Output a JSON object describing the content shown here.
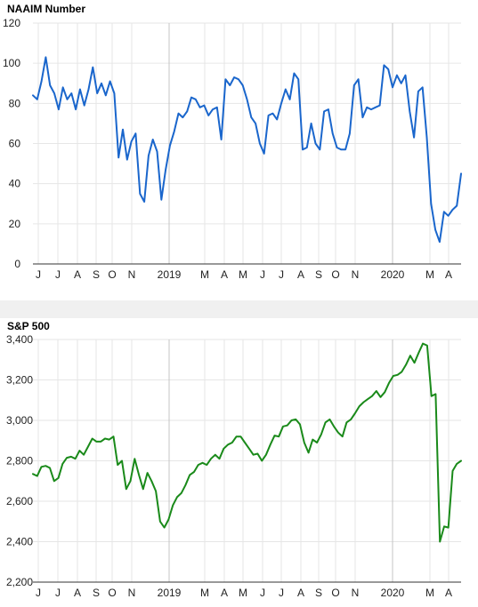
{
  "colors": {
    "naaim_line": "#1a66cc",
    "sp_line": "#1a8a1a",
    "grid": "#e6e6e6",
    "divider": "#c4c4c4",
    "band": "#f0f0f0"
  },
  "chart_data": [
    {
      "type": "line",
      "title": "NAAIM Number",
      "ylim": [
        0,
        120
      ],
      "yticks": [
        0,
        20,
        40,
        60,
        80,
        100,
        120
      ],
      "ytick_labels": [
        "0",
        "20",
        "40",
        "60",
        "80",
        "100",
        "120"
      ],
      "xtick_labels": [
        "J",
        "J",
        "A",
        "S",
        "O",
        "N",
        "2019",
        "M",
        "A",
        "M",
        "J",
        "J",
        "A",
        "S",
        "O",
        "N",
        "2020",
        "M",
        "A"
      ],
      "grid": true,
      "series": [
        {
          "values": [
            84,
            82,
            91,
            103,
            89,
            85,
            77,
            88,
            82,
            85,
            77,
            87,
            79,
            87,
            98,
            85,
            90,
            84,
            91,
            85,
            53,
            67,
            52,
            61,
            65,
            35,
            31,
            54,
            62,
            56,
            32,
            47,
            59,
            66,
            75,
            73,
            76,
            83,
            82,
            78,
            79,
            74,
            77,
            78,
            62,
            92,
            89,
            93,
            92,
            89,
            82,
            73,
            70,
            60,
            55,
            74,
            75,
            72,
            80,
            87,
            82,
            95,
            92,
            57,
            58,
            70,
            60,
            57,
            76,
            77,
            65,
            58,
            57,
            57,
            65,
            89,
            92,
            73,
            78,
            77,
            78,
            79,
            99,
            97,
            88,
            94,
            90,
            94,
            76,
            63,
            86,
            88,
            63,
            30,
            17,
            11,
            26,
            24,
            27,
            29,
            45
          ]
        }
      ]
    },
    {
      "type": "line",
      "title": "S&P 500",
      "ylim": [
        2200,
        3400
      ],
      "yticks": [
        2200,
        2400,
        2600,
        2800,
        3000,
        3200,
        3400
      ],
      "ytick_labels": [
        "2,200",
        "2,400",
        "2,600",
        "2,800",
        "3,000",
        "3,200",
        "3,400"
      ],
      "xtick_labels": [
        "J",
        "J",
        "A",
        "S",
        "O",
        "N",
        "2019",
        "M",
        "A",
        "M",
        "J",
        "J",
        "A",
        "S",
        "O",
        "N",
        "2020",
        "M",
        "A"
      ],
      "grid": true,
      "series": [
        {
          "values": [
            2735,
            2725,
            2770,
            2775,
            2765,
            2700,
            2715,
            2785,
            2815,
            2820,
            2810,
            2850,
            2830,
            2870,
            2910,
            2895,
            2895,
            2910,
            2905,
            2920,
            2780,
            2800,
            2660,
            2700,
            2810,
            2730,
            2660,
            2740,
            2700,
            2650,
            2500,
            2470,
            2510,
            2580,
            2620,
            2640,
            2680,
            2730,
            2745,
            2780,
            2790,
            2780,
            2810,
            2830,
            2810,
            2860,
            2880,
            2890,
            2920,
            2920,
            2890,
            2860,
            2830,
            2835,
            2800,
            2830,
            2880,
            2925,
            2920,
            2970,
            2975,
            3000,
            3005,
            2980,
            2890,
            2840,
            2905,
            2890,
            2930,
            2990,
            3005,
            2970,
            2940,
            2920,
            2990,
            3005,
            3035,
            3070,
            3090,
            3105,
            3120,
            3145,
            3115,
            3140,
            3185,
            3220,
            3225,
            3240,
            3275,
            3320,
            3285,
            3335,
            3380,
            3370,
            3120,
            3130,
            2400,
            2475,
            2470,
            2750,
            2785,
            2800
          ]
        }
      ]
    }
  ]
}
